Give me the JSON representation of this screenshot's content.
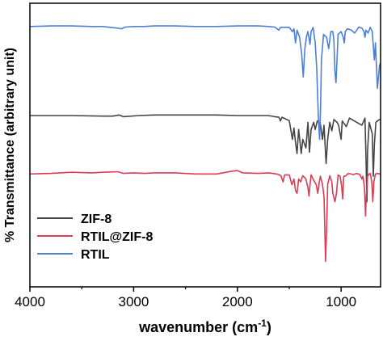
{
  "chart_data": {
    "type": "line",
    "xlabel": "wavenumber (cm",
    "xlabel_sup": "-1",
    "xlabel_suffix": ")",
    "ylabel": "% Transmittance (arbitrary unit)",
    "xlim": [
      4000,
      620
    ],
    "x_reversed": true,
    "ylim": [
      0,
      1
    ],
    "x_ticks": [
      {
        "value": 4000,
        "label": "4000"
      },
      {
        "value": 3000,
        "label": "3000"
      },
      {
        "value": 2000,
        "label": "2000"
      },
      {
        "value": 1000,
        "label": "1000"
      }
    ],
    "x_minor_ticks": [
      3500,
      2500,
      1500
    ],
    "y_ticks": [],
    "grid": false,
    "legend_position": "bottom-left",
    "series": [
      {
        "name": "ZIF-8",
        "color": "#444444",
        "points": [
          [
            4000,
            0.604
          ],
          [
            3600,
            0.604
          ],
          [
            3300,
            0.602
          ],
          [
            3200,
            0.602
          ],
          [
            3140,
            0.606
          ],
          [
            3100,
            0.6
          ],
          [
            2950,
            0.604
          ],
          [
            2800,
            0.606
          ],
          [
            2600,
            0.606
          ],
          [
            2400,
            0.606
          ],
          [
            2200,
            0.606
          ],
          [
            2000,
            0.604
          ],
          [
            1800,
            0.604
          ],
          [
            1700,
            0.604
          ],
          [
            1640,
            0.6
          ],
          [
            1600,
            0.598
          ],
          [
            1585,
            0.585
          ],
          [
            1570,
            0.598
          ],
          [
            1500,
            0.586
          ],
          [
            1470,
            0.52
          ],
          [
            1455,
            0.56
          ],
          [
            1440,
            0.51
          ],
          [
            1425,
            0.47
          ],
          [
            1410,
            0.555
          ],
          [
            1385,
            0.47
          ],
          [
            1370,
            0.52
          ],
          [
            1340,
            0.49
          ],
          [
            1320,
            0.58
          ],
          [
            1305,
            0.475
          ],
          [
            1290,
            0.555
          ],
          [
            1265,
            0.58
          ],
          [
            1250,
            0.555
          ],
          [
            1230,
            0.585
          ],
          [
            1200,
            0.575
          ],
          [
            1180,
            0.52
          ],
          [
            1165,
            0.57
          ],
          [
            1145,
            0.435
          ],
          [
            1130,
            0.52
          ],
          [
            1110,
            0.58
          ],
          [
            1090,
            0.55
          ],
          [
            1070,
            0.59
          ],
          [
            1040,
            0.58
          ],
          [
            1025,
            0.57
          ],
          [
            1000,
            0.52
          ],
          [
            990,
            0.585
          ],
          [
            950,
            0.565
          ],
          [
            920,
            0.595
          ],
          [
            850,
            0.58
          ],
          [
            800,
            0.57
          ],
          [
            770,
            0.595
          ],
          [
            760,
            0.45
          ],
          [
            752,
            0.3
          ],
          [
            745,
            0.48
          ],
          [
            730,
            0.58
          ],
          [
            700,
            0.54
          ],
          [
            690,
            0.39
          ],
          [
            680,
            0.5
          ],
          [
            665,
            0.58
          ],
          [
            650,
            0.585
          ],
          [
            630,
            0.59
          ],
          [
            620,
            0.59
          ]
        ]
      },
      {
        "name": "RTIL@ZIF-8",
        "color": "#d93c55",
        "points": [
          [
            4000,
            0.398
          ],
          [
            3800,
            0.4
          ],
          [
            3600,
            0.404
          ],
          [
            3400,
            0.402
          ],
          [
            3300,
            0.404
          ],
          [
            3150,
            0.406
          ],
          [
            3100,
            0.4
          ],
          [
            3000,
            0.402
          ],
          [
            2900,
            0.4
          ],
          [
            2800,
            0.402
          ],
          [
            2600,
            0.402
          ],
          [
            2400,
            0.398
          ],
          [
            2200,
            0.398
          ],
          [
            2050,
            0.408
          ],
          [
            2000,
            0.41
          ],
          [
            1950,
            0.402
          ],
          [
            1800,
            0.4
          ],
          [
            1700,
            0.402
          ],
          [
            1620,
            0.398
          ],
          [
            1580,
            0.392
          ],
          [
            1560,
            0.37
          ],
          [
            1545,
            0.395
          ],
          [
            1500,
            0.395
          ],
          [
            1475,
            0.36
          ],
          [
            1455,
            0.38
          ],
          [
            1440,
            0.34
          ],
          [
            1425,
            0.33
          ],
          [
            1410,
            0.38
          ],
          [
            1390,
            0.37
          ],
          [
            1370,
            0.392
          ],
          [
            1340,
            0.38
          ],
          [
            1320,
            0.35
          ],
          [
            1310,
            0.32
          ],
          [
            1300,
            0.36
          ],
          [
            1290,
            0.395
          ],
          [
            1270,
            0.38
          ],
          [
            1240,
            0.36
          ],
          [
            1225,
            0.33
          ],
          [
            1210,
            0.37
          ],
          [
            1200,
            0.39
          ],
          [
            1180,
            0.36
          ],
          [
            1165,
            0.32
          ],
          [
            1150,
            0.09
          ],
          [
            1140,
            0.2
          ],
          [
            1130,
            0.36
          ],
          [
            1110,
            0.392
          ],
          [
            1090,
            0.37
          ],
          [
            1080,
            0.33
          ],
          [
            1060,
            0.3
          ],
          [
            1045,
            0.33
          ],
          [
            1030,
            0.395
          ],
          [
            1010,
            0.39
          ],
          [
            995,
            0.355
          ],
          [
            985,
            0.31
          ],
          [
            975,
            0.39
          ],
          [
            960,
            0.39
          ],
          [
            930,
            0.4
          ],
          [
            880,
            0.396
          ],
          [
            850,
            0.4
          ],
          [
            820,
            0.396
          ],
          [
            800,
            0.38
          ],
          [
            790,
            0.39
          ],
          [
            775,
            0.35
          ],
          [
            765,
            0.25
          ],
          [
            758,
            0.32
          ],
          [
            745,
            0.39
          ],
          [
            730,
            0.398
          ],
          [
            720,
            0.4
          ],
          [
            705,
            0.37
          ],
          [
            695,
            0.3
          ],
          [
            685,
            0.37
          ],
          [
            670,
            0.398
          ],
          [
            650,
            0.4
          ],
          [
            630,
            0.398
          ],
          [
            620,
            0.398
          ]
        ]
      },
      {
        "name": "RTIL",
        "color": "#4d7fd6",
        "points": [
          [
            4000,
            0.918
          ],
          [
            3800,
            0.92
          ],
          [
            3600,
            0.92
          ],
          [
            3400,
            0.918
          ],
          [
            3300,
            0.918
          ],
          [
            3200,
            0.914
          ],
          [
            3150,
            0.912
          ],
          [
            3120,
            0.91
          ],
          [
            3080,
            0.916
          ],
          [
            3000,
            0.918
          ],
          [
            2900,
            0.918
          ],
          [
            2800,
            0.92
          ],
          [
            2600,
            0.92
          ],
          [
            2400,
            0.918
          ],
          [
            2200,
            0.918
          ],
          [
            2000,
            0.92
          ],
          [
            1800,
            0.92
          ],
          [
            1700,
            0.918
          ],
          [
            1640,
            0.916
          ],
          [
            1600,
            0.905
          ],
          [
            1585,
            0.915
          ],
          [
            1500,
            0.915
          ],
          [
            1470,
            0.9
          ],
          [
            1455,
            0.91
          ],
          [
            1440,
            0.86
          ],
          [
            1425,
            0.905
          ],
          [
            1400,
            0.88
          ],
          [
            1380,
            0.82
          ],
          [
            1365,
            0.74
          ],
          [
            1350,
            0.84
          ],
          [
            1335,
            0.88
          ],
          [
            1320,
            0.9
          ],
          [
            1300,
            0.855
          ],
          [
            1290,
            0.9
          ],
          [
            1270,
            0.915
          ],
          [
            1250,
            0.86
          ],
          [
            1235,
            0.77
          ],
          [
            1220,
            0.6
          ],
          [
            1208,
            0.52
          ],
          [
            1198,
            0.64
          ],
          [
            1190,
            0.8
          ],
          [
            1170,
            0.89
          ],
          [
            1140,
            0.88
          ],
          [
            1120,
            0.84
          ],
          [
            1100,
            0.9
          ],
          [
            1080,
            0.9
          ],
          [
            1070,
            0.87
          ],
          [
            1060,
            0.76
          ],
          [
            1050,
            0.72
          ],
          [
            1040,
            0.8
          ],
          [
            1030,
            0.89
          ],
          [
            1000,
            0.9
          ],
          [
            980,
            0.88
          ],
          [
            970,
            0.86
          ],
          [
            960,
            0.9
          ],
          [
            940,
            0.91
          ],
          [
            900,
            0.905
          ],
          [
            870,
            0.895
          ],
          [
            850,
            0.905
          ],
          [
            830,
            0.916
          ],
          [
            800,
            0.912
          ],
          [
            780,
            0.9
          ],
          [
            770,
            0.88
          ],
          [
            760,
            0.905
          ],
          [
            740,
            0.895
          ],
          [
            720,
            0.915
          ],
          [
            700,
            0.9
          ],
          [
            690,
            0.85
          ],
          [
            680,
            0.8
          ],
          [
            670,
            0.86
          ],
          [
            650,
            0.7
          ],
          [
            640,
            0.74
          ],
          [
            630,
            0.78
          ],
          [
            620,
            0.79
          ]
        ]
      }
    ]
  }
}
